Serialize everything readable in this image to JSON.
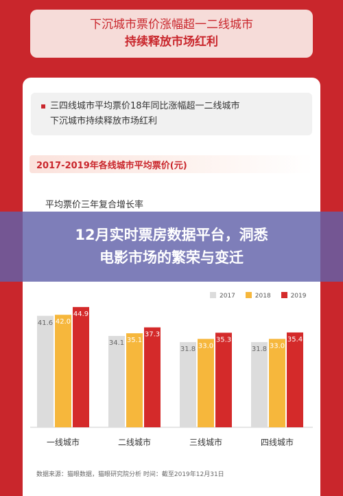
{
  "header": {
    "line1": "下沉城市票价涨幅超一二线城市",
    "line2": "持续释放市场红利"
  },
  "intro": {
    "bullet": "▪",
    "line1": "三四线城市平均票价18年同比涨幅超一二线城市",
    "line2": "下沉城市持续释放市场红利"
  },
  "chart_data": {
    "type": "bar",
    "title": "2017-2019年各线城市平均票价(元)",
    "subtitle": "平均票价三年复合增长率",
    "categories": [
      "一线城市",
      "二线城市",
      "三线城市",
      "四线城市"
    ],
    "series": [
      {
        "name": "2017",
        "values": [
          41.6,
          34.1,
          31.8,
          31.8
        ]
      },
      {
        "name": "2018",
        "values": [
          42.0,
          35.1,
          33.0,
          33.0
        ]
      },
      {
        "name": "2019",
        "values": [
          44.9,
          37.3,
          35.3,
          35.4
        ]
      }
    ],
    "legend_position": "top-right",
    "grid": false
  },
  "colors": {
    "s2017": "#dcdcdc",
    "s2018": "#f6b73c",
    "s2019": "#d42a2a"
  },
  "banner": {
    "line1": "12月实时票房数据平台，洞悉",
    "line2": "电影市场的繁荣与变迁"
  },
  "source": "数据来源：猫眼数据，猫眼研究院分析   时间：截至2019年12月31日"
}
